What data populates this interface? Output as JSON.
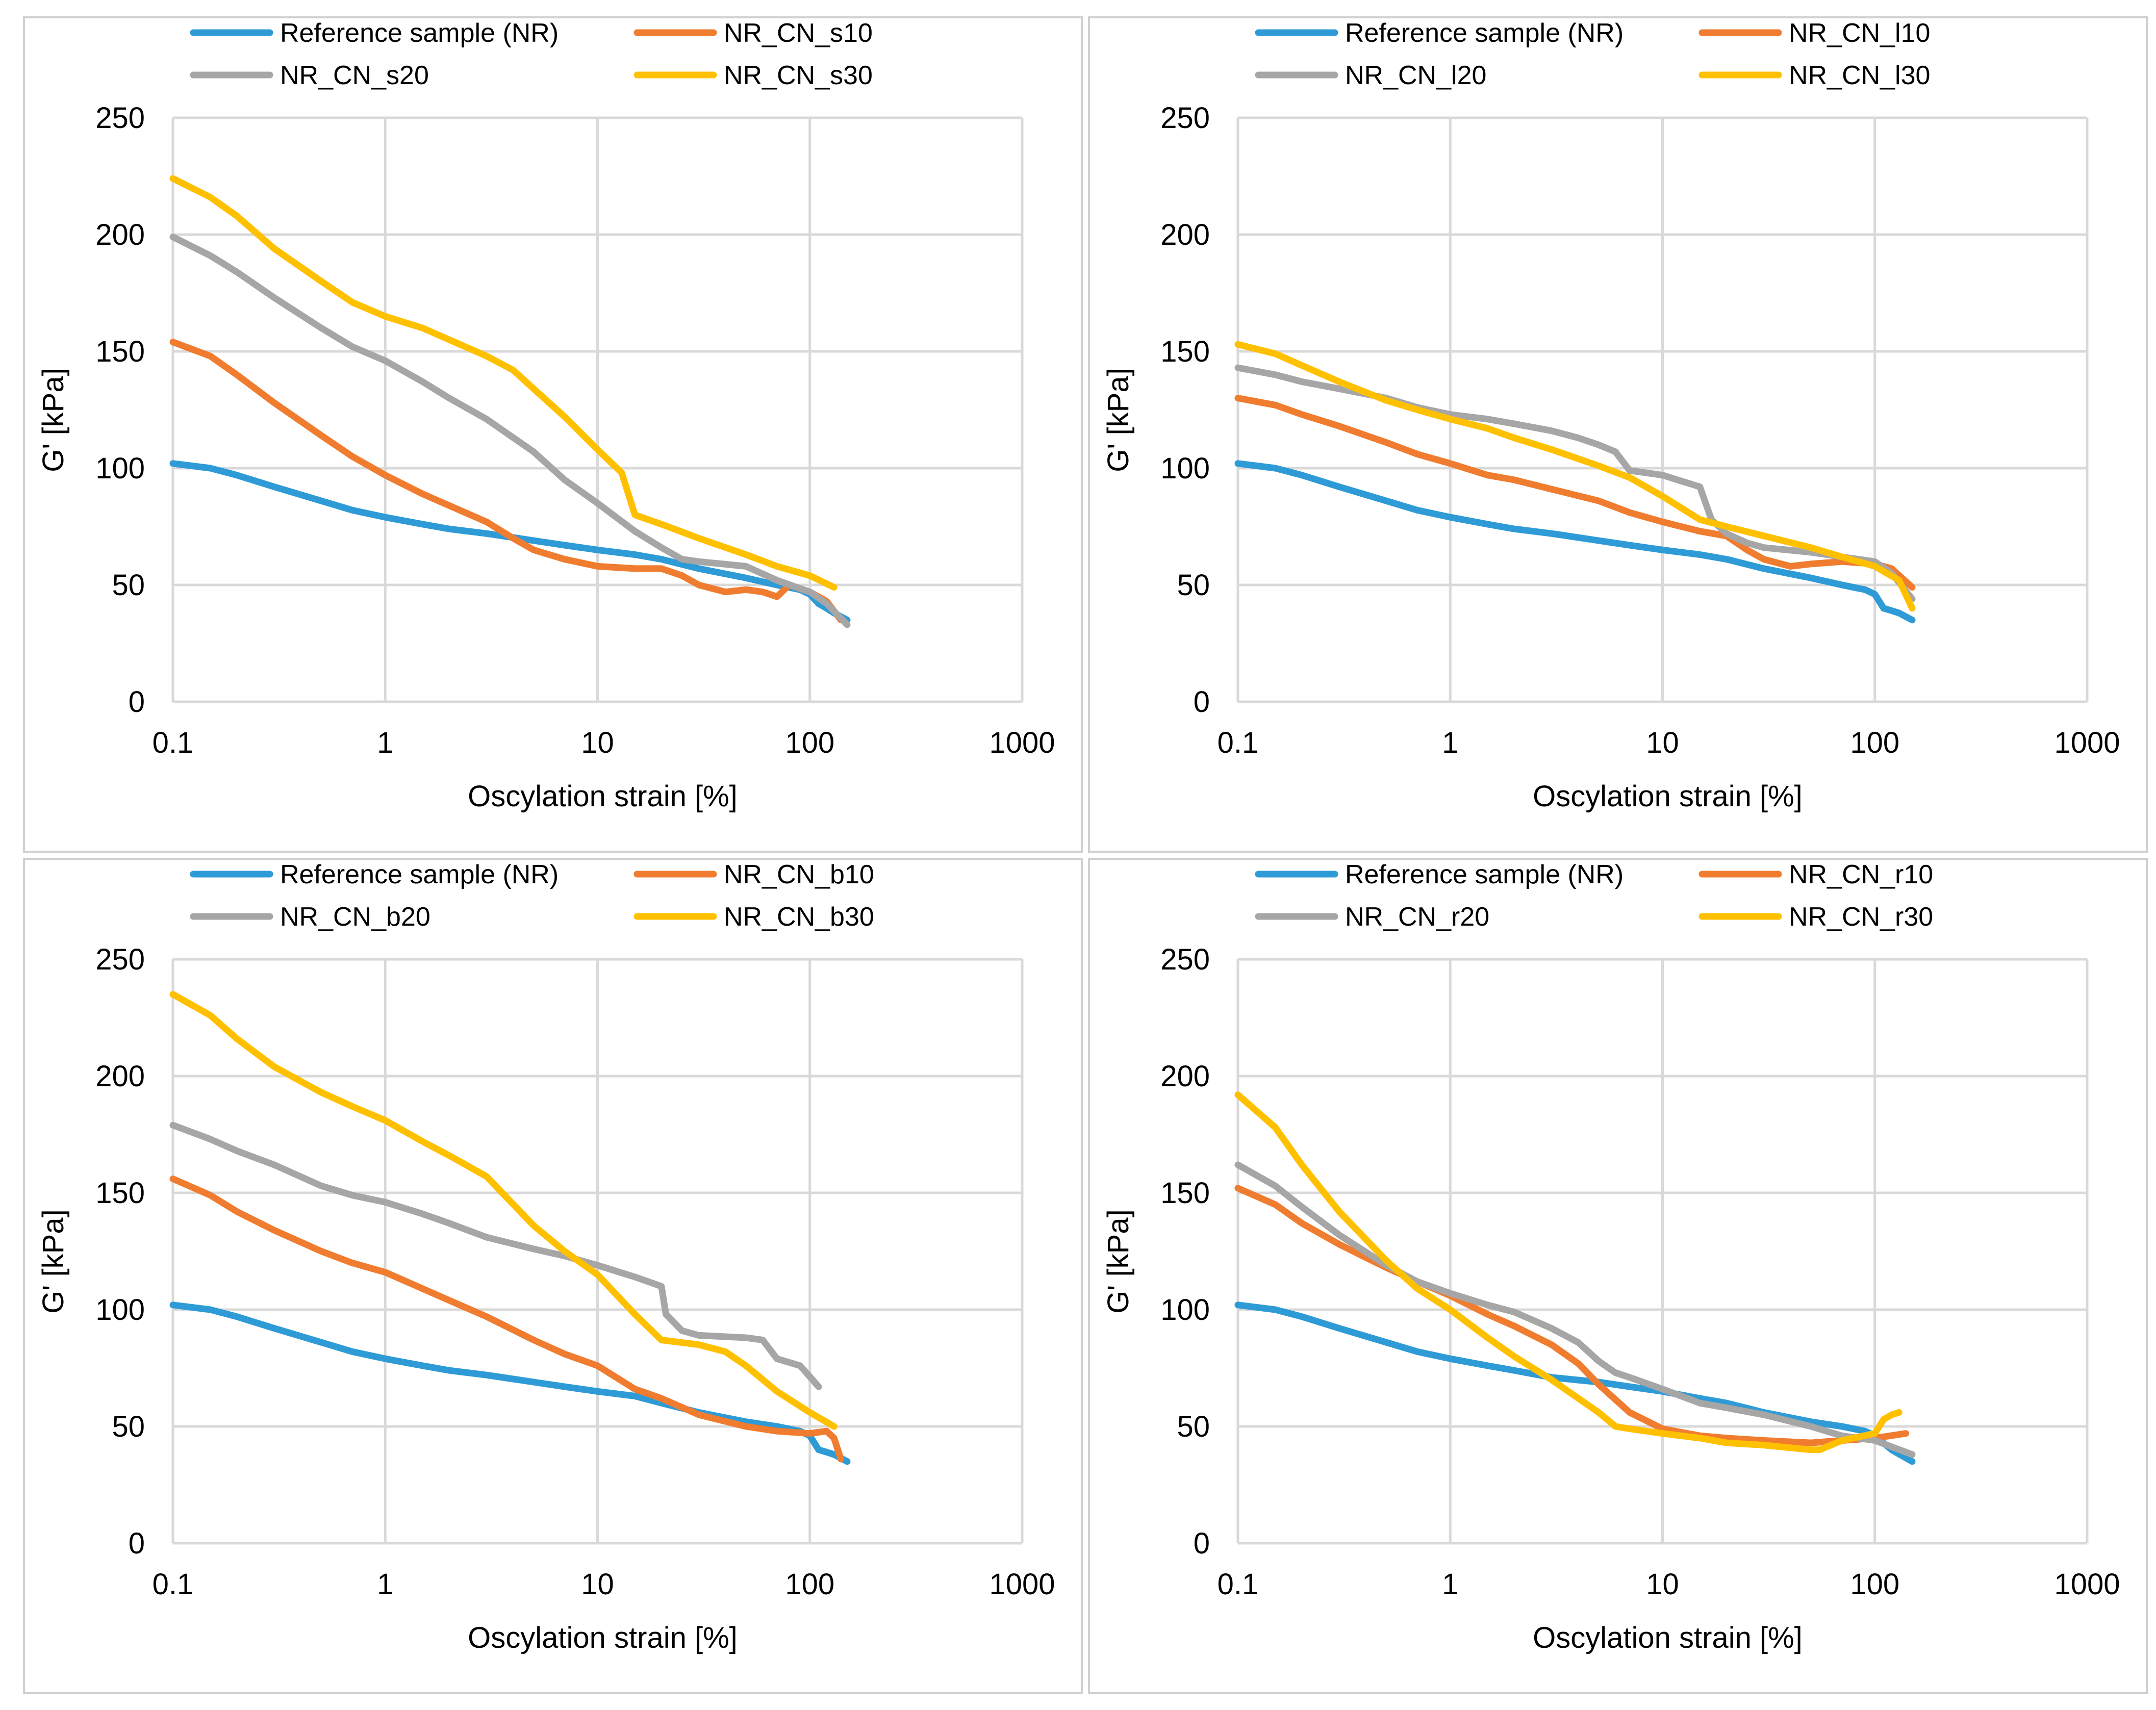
{
  "colors": {
    "reference": "#2E9BD6",
    "s10": "#F07C30",
    "s20": "#A6A6A6",
    "s30": "#FFC000",
    "grid": "#D9D9D9"
  },
  "chart_data": [
    {
      "type": "line",
      "x_scale": "log",
      "xlabel": "Oscylation strain [%]",
      "ylabel": "G' [kPa]",
      "xlim": [
        0.1,
        1000
      ],
      "ylim": [
        0,
        250
      ],
      "x_ticks": [
        "0.1",
        "1",
        "10",
        "100",
        "1000"
      ],
      "y_ticks": [
        "0",
        "50",
        "100",
        "150",
        "200",
        "250"
      ],
      "legend_position": "top",
      "series": [
        {
          "name": "Reference sample (NR)",
          "color_key": "reference",
          "x": [
            0.1,
            0.15,
            0.2,
            0.3,
            0.5,
            0.7,
            1,
            1.5,
            2,
            3,
            5,
            7,
            10,
            15,
            20,
            30,
            50,
            70,
            90,
            100,
            110,
            120,
            130,
            150
          ],
          "y": [
            102,
            100,
            97,
            92,
            86,
            82,
            79,
            76,
            74,
            72,
            69,
            67,
            65,
            63,
            61,
            57,
            53,
            50,
            48,
            46,
            42,
            40,
            38,
            35
          ]
        },
        {
          "name": "NR_CN_s10",
          "color_key": "s10",
          "x": [
            0.1,
            0.15,
            0.2,
            0.3,
            0.5,
            0.7,
            1,
            1.5,
            2,
            3,
            4,
            5,
            7,
            10,
            15,
            20,
            25,
            30,
            40,
            50,
            60,
            70,
            80,
            100,
            120,
            140
          ],
          "y": [
            154,
            148,
            140,
            128,
            114,
            105,
            97,
            89,
            84,
            77,
            70,
            65,
            61,
            58,
            57,
            57,
            54,
            50,
            47,
            48,
            47,
            45,
            50,
            47,
            43,
            35
          ]
        },
        {
          "name": "NR_CN_s20",
          "color_key": "s20",
          "x": [
            0.1,
            0.15,
            0.2,
            0.3,
            0.5,
            0.7,
            1,
            1.5,
            2,
            3,
            5,
            7,
            10,
            15,
            20,
            25,
            30,
            50,
            70,
            100,
            120,
            150
          ],
          "y": [
            199,
            191,
            184,
            173,
            160,
            152,
            146,
            137,
            130,
            121,
            107,
            95,
            85,
            73,
            66,
            61,
            60,
            58,
            52,
            47,
            42,
            33
          ]
        },
        {
          "name": "NR_CN_s30",
          "color_key": "s30",
          "x": [
            0.1,
            0.15,
            0.2,
            0.3,
            0.5,
            0.7,
            1,
            1.5,
            2,
            3,
            4,
            5,
            7,
            10,
            13,
            15,
            20,
            30,
            50,
            70,
            100,
            130
          ],
          "y": [
            224,
            216,
            208,
            194,
            180,
            171,
            165,
            160,
            155,
            148,
            142,
            134,
            122,
            108,
            98,
            80,
            76,
            70,
            63,
            58,
            54,
            49
          ]
        }
      ],
      "legend": [
        "Reference sample (NR)",
        "NR_CN_s10",
        "NR_CN_s20",
        "NR_CN_s30"
      ]
    },
    {
      "type": "line",
      "x_scale": "log",
      "xlabel": "Oscylation strain [%]",
      "ylabel": "G' [kPa]",
      "xlim": [
        0.1,
        1000
      ],
      "ylim": [
        0,
        250
      ],
      "x_ticks": [
        "0.1",
        "1",
        "10",
        "100",
        "1000"
      ],
      "y_ticks": [
        "0",
        "50",
        "100",
        "150",
        "200",
        "250"
      ],
      "legend_position": "top",
      "series": [
        {
          "name": "Reference sample (NR)",
          "color_key": "reference",
          "x": [
            0.1,
            0.15,
            0.2,
            0.3,
            0.5,
            0.7,
            1,
            1.5,
            2,
            3,
            5,
            7,
            10,
            15,
            20,
            30,
            50,
            70,
            90,
            100,
            110,
            120,
            130,
            150
          ],
          "y": [
            102,
            100,
            97,
            92,
            86,
            82,
            79,
            76,
            74,
            72,
            69,
            67,
            65,
            63,
            61,
            57,
            53,
            50,
            48,
            46,
            40,
            39,
            38,
            35
          ]
        },
        {
          "name": "NR_CN_l10",
          "color_key": "s10",
          "x": [
            0.1,
            0.15,
            0.2,
            0.3,
            0.5,
            0.7,
            1,
            1.5,
            2,
            3,
            5,
            7,
            10,
            15,
            20,
            25,
            30,
            40,
            50,
            70,
            100,
            120,
            150
          ],
          "y": [
            130,
            127,
            123,
            118,
            111,
            106,
            102,
            97,
            95,
            91,
            86,
            81,
            77,
            73,
            71,
            65,
            61,
            58,
            59,
            60,
            59,
            57,
            49
          ]
        },
        {
          "name": "NR_CN_l20",
          "color_key": "s20",
          "x": [
            0.1,
            0.15,
            0.2,
            0.3,
            0.5,
            0.7,
            1,
            1.5,
            2,
            3,
            4,
            5,
            6,
            7,
            10,
            15,
            17,
            20,
            25,
            30,
            50,
            70,
            100,
            120,
            150
          ],
          "y": [
            143,
            140,
            137,
            134,
            130,
            126,
            123,
            121,
            119,
            116,
            113,
            110,
            107,
            99,
            97,
            92,
            78,
            72,
            68,
            66,
            64,
            62,
            60,
            55,
            44
          ]
        },
        {
          "name": "NR_CN_l30",
          "color_key": "s30",
          "x": [
            0.1,
            0.15,
            0.2,
            0.3,
            0.5,
            0.7,
            1,
            1.5,
            2,
            3,
            5,
            7,
            10,
            15,
            20,
            30,
            50,
            70,
            100,
            130,
            150
          ],
          "y": [
            153,
            149,
            144,
            137,
            129,
            125,
            121,
            117,
            113,
            108,
            101,
            96,
            88,
            78,
            75,
            71,
            66,
            62,
            58,
            52,
            40
          ]
        }
      ],
      "legend": [
        "Reference sample (NR)",
        "NR_CN_l10",
        "NR_CN_l20",
        "NR_CN_l30"
      ]
    },
    {
      "type": "line",
      "x_scale": "log",
      "xlabel": "Oscylation strain [%]",
      "ylabel": "G' [kPa]",
      "xlim": [
        0.1,
        1000
      ],
      "ylim": [
        0,
        250
      ],
      "x_ticks": [
        "0.1",
        "1",
        "10",
        "100",
        "1000"
      ],
      "y_ticks": [
        "0",
        "50",
        "100",
        "150",
        "200",
        "250"
      ],
      "legend_position": "top",
      "series": [
        {
          "name": "Reference sample (NR)",
          "color_key": "reference",
          "x": [
            0.1,
            0.15,
            0.2,
            0.3,
            0.5,
            0.7,
            1,
            1.5,
            2,
            3,
            5,
            7,
            10,
            15,
            20,
            30,
            50,
            70,
            90,
            100,
            110,
            120,
            130,
            150
          ],
          "y": [
            102,
            100,
            97,
            92,
            86,
            82,
            79,
            76,
            74,
            72,
            69,
            67,
            65,
            63,
            60,
            56,
            52,
            50,
            48,
            46,
            40,
            39,
            38,
            35
          ]
        },
        {
          "name": "NR_CN_b10",
          "color_key": "s10",
          "x": [
            0.1,
            0.15,
            0.2,
            0.3,
            0.5,
            0.7,
            1,
            1.5,
            2,
            3,
            5,
            7,
            10,
            15,
            20,
            30,
            50,
            70,
            100,
            120,
            130,
            140
          ],
          "y": [
            156,
            149,
            142,
            134,
            125,
            120,
            116,
            109,
            104,
            97,
            87,
            81,
            76,
            66,
            62,
            55,
            50,
            48,
            47,
            48,
            45,
            36
          ]
        },
        {
          "name": "NR_CN_b20",
          "color_key": "s20",
          "x": [
            0.1,
            0.15,
            0.2,
            0.3,
            0.5,
            0.7,
            1,
            1.5,
            2,
            3,
            5,
            7,
            10,
            15,
            20,
            21,
            25,
            30,
            50,
            60,
            70,
            90,
            110
          ],
          "y": [
            179,
            173,
            168,
            162,
            153,
            149,
            146,
            141,
            137,
            131,
            126,
            123,
            119,
            114,
            110,
            98,
            91,
            89,
            88,
            87,
            79,
            76,
            67
          ]
        },
        {
          "name": "NR_CN_b30",
          "color_key": "s30",
          "x": [
            0.1,
            0.15,
            0.2,
            0.3,
            0.5,
            0.7,
            1,
            1.5,
            2,
            3,
            5,
            7,
            10,
            15,
            20,
            30,
            40,
            50,
            70,
            100,
            130
          ],
          "y": [
            235,
            226,
            216,
            204,
            193,
            187,
            181,
            172,
            166,
            157,
            136,
            125,
            115,
            98,
            87,
            85,
            82,
            76,
            65,
            56,
            50
          ]
        }
      ],
      "legend": [
        "Reference sample (NR)",
        "NR_CN_b10",
        "NR_CN_b20",
        "NR_CN_b30"
      ]
    },
    {
      "type": "line",
      "x_scale": "log",
      "xlabel": "Oscylation strain [%]",
      "ylabel": "G' [kPa]",
      "xlim": [
        0.1,
        1000
      ],
      "ylim": [
        0,
        250
      ],
      "x_ticks": [
        "0.1",
        "1",
        "10",
        "100",
        "1000"
      ],
      "y_ticks": [
        "0",
        "50",
        "100",
        "150",
        "200",
        "250"
      ],
      "legend_position": "top",
      "series": [
        {
          "name": "Reference sample (NR)",
          "color_key": "reference",
          "x": [
            0.1,
            0.15,
            0.2,
            0.3,
            0.5,
            0.7,
            1,
            1.5,
            2,
            3,
            5,
            7,
            10,
            15,
            20,
            30,
            50,
            70,
            90,
            100,
            120,
            150
          ],
          "y": [
            102,
            100,
            97,
            92,
            86,
            82,
            79,
            76,
            74,
            71,
            69,
            67,
            65,
            62,
            60,
            56,
            52,
            50,
            48,
            46,
            40,
            35
          ]
        },
        {
          "name": "NR_CN_r10",
          "color_key": "s10",
          "x": [
            0.1,
            0.15,
            0.2,
            0.3,
            0.5,
            0.7,
            1,
            1.5,
            2,
            3,
            4,
            5,
            7,
            10,
            15,
            20,
            30,
            50,
            70,
            100,
            140
          ],
          "y": [
            152,
            145,
            137,
            128,
            118,
            112,
            106,
            98,
            93,
            85,
            77,
            68,
            56,
            49,
            46,
            45,
            44,
            43,
            44,
            45,
            47
          ]
        },
        {
          "name": "NR_CN_r20",
          "color_key": "s20",
          "x": [
            0.1,
            0.15,
            0.2,
            0.3,
            0.5,
            0.7,
            1,
            1.5,
            2,
            3,
            4,
            5,
            6,
            7,
            10,
            15,
            20,
            30,
            50,
            70,
            100,
            150
          ],
          "y": [
            162,
            153,
            144,
            132,
            119,
            112,
            107,
            102,
            99,
            92,
            86,
            78,
            73,
            71,
            66,
            60,
            58,
            55,
            50,
            46,
            44,
            38
          ]
        },
        {
          "name": "NR_CN_r30",
          "color_key": "s30",
          "x": [
            0.1,
            0.15,
            0.2,
            0.3,
            0.5,
            0.7,
            1,
            1.5,
            2,
            3,
            5,
            6,
            7,
            10,
            15,
            20,
            30,
            50,
            55,
            70,
            100,
            110,
            120,
            130
          ],
          "y": [
            192,
            178,
            162,
            142,
            121,
            109,
            100,
            88,
            80,
            70,
            56,
            50,
            49,
            47,
            45,
            43,
            42,
            40,
            40,
            44,
            47,
            53,
            55,
            56
          ]
        }
      ],
      "legend": [
        "Reference sample (NR)",
        "NR_CN_r10",
        "NR_CN_r20",
        "NR_CN_r30"
      ]
    }
  ]
}
